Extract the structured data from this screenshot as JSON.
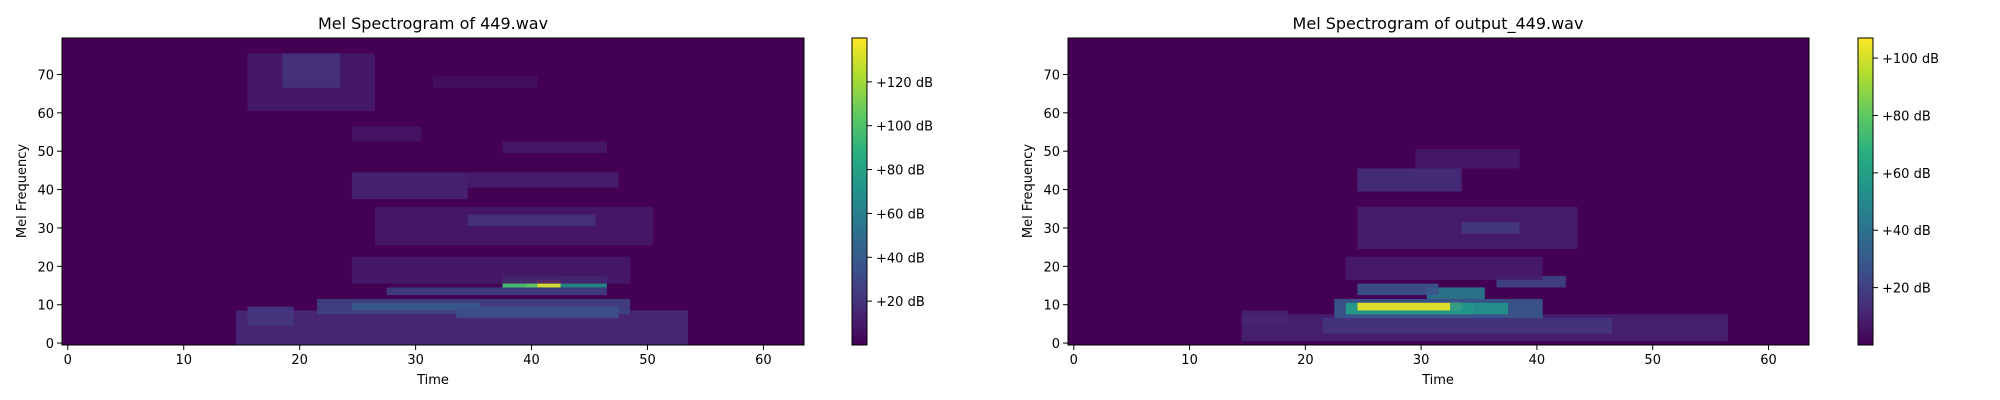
{
  "chart_data": [
    {
      "type": "heatmap",
      "title": "Mel Spectrogram of 449.wav",
      "xlabel": "Time",
      "ylabel": "Mel Frequency",
      "xlim": [
        -0.5,
        63.5
      ],
      "ylim": [
        -0.5,
        79.5
      ],
      "x_ticks": [
        0,
        10,
        20,
        30,
        40,
        50,
        60
      ],
      "y_ticks": [
        0,
        10,
        20,
        30,
        40,
        50,
        60,
        70
      ],
      "colorbar": {
        "min": 0,
        "max": 140,
        "ticks": [
          20,
          40,
          60,
          80,
          100,
          120
        ],
        "tick_labels": [
          "+20 dB",
          "+40 dB",
          "+60 dB",
          "+80 dB",
          "+100 dB",
          "+120 dB"
        ]
      },
      "background": 0,
      "regions": [
        {
          "t": [
            15,
            53
          ],
          "m": [
            0,
            8
          ],
          "v": 16
        },
        {
          "t": [
            22,
            48
          ],
          "m": [
            8,
            11
          ],
          "v": 28
        },
        {
          "t": [
            25,
            35
          ],
          "m": [
            9,
            10
          ],
          "v": 40
        },
        {
          "t": [
            34,
            47
          ],
          "m": [
            7,
            9
          ],
          "v": 34
        },
        {
          "t": [
            28,
            46
          ],
          "m": [
            13,
            14
          ],
          "v": 26
        },
        {
          "t": [
            38,
            46
          ],
          "m": [
            15,
            17
          ],
          "v": 70
        },
        {
          "t": [
            40,
            42
          ],
          "m": [
            15,
            16
          ],
          "v": 135
        },
        {
          "t": [
            38,
            40
          ],
          "m": [
            15,
            16
          ],
          "v": 100
        },
        {
          "t": [
            16,
            19
          ],
          "m": [
            5,
            9
          ],
          "v": 22
        },
        {
          "t": [
            25,
            48
          ],
          "m": [
            16,
            22
          ],
          "v": 10
        },
        {
          "t": [
            27,
            50
          ],
          "m": [
            26,
            35
          ],
          "v": 9
        },
        {
          "t": [
            35,
            45
          ],
          "m": [
            31,
            33
          ],
          "v": 20
        },
        {
          "t": [
            25,
            34
          ],
          "m": [
            38,
            44
          ],
          "v": 14
        },
        {
          "t": [
            35,
            47
          ],
          "m": [
            41,
            44
          ],
          "v": 12
        },
        {
          "t": [
            38,
            46
          ],
          "m": [
            50,
            52
          ],
          "v": 9
        },
        {
          "t": [
            25,
            30
          ],
          "m": [
            53,
            56
          ],
          "v": 8
        },
        {
          "t": [
            16,
            26
          ],
          "m": [
            61,
            75
          ],
          "v": 10
        },
        {
          "t": [
            19,
            23
          ],
          "m": [
            67,
            75
          ],
          "v": 20
        },
        {
          "t": [
            32,
            40
          ],
          "m": [
            67,
            69
          ],
          "v": 6
        }
      ]
    },
    {
      "type": "heatmap",
      "title": "Mel Spectrogram of output_449.wav",
      "xlabel": "Time",
      "ylabel": "Mel Frequency",
      "xlim": [
        -0.5,
        63.5
      ],
      "ylim": [
        -0.5,
        79.5
      ],
      "x_ticks": [
        0,
        10,
        20,
        30,
        40,
        50,
        60
      ],
      "y_ticks": [
        0,
        10,
        20,
        30,
        40,
        50,
        60,
        70
      ],
      "colorbar": {
        "min": 0,
        "max": 107,
        "ticks": [
          20,
          40,
          60,
          80,
          100
        ],
        "tick_labels": [
          "+20 dB",
          "+40 dB",
          "+60 dB",
          "+80 dB",
          "+100 dB"
        ]
      },
      "background": 0,
      "regions": [
        {
          "t": [
            15,
            56
          ],
          "m": [
            1,
            7
          ],
          "v": 10
        },
        {
          "t": [
            22,
            46
          ],
          "m": [
            3,
            6
          ],
          "v": 16
        },
        {
          "t": [
            23,
            40
          ],
          "m": [
            7,
            11
          ],
          "v": 30
        },
        {
          "t": [
            24,
            34
          ],
          "m": [
            8,
            10
          ],
          "v": 60
        },
        {
          "t": [
            25,
            33
          ],
          "m": [
            9,
            10
          ],
          "v": 105
        },
        {
          "t": [
            33,
            37
          ],
          "m": [
            8,
            10
          ],
          "v": 55
        },
        {
          "t": [
            31,
            35
          ],
          "m": [
            12,
            14
          ],
          "v": 45
        },
        {
          "t": [
            25,
            31
          ],
          "m": [
            13,
            15
          ],
          "v": 28
        },
        {
          "t": [
            37,
            42
          ],
          "m": [
            15,
            17
          ],
          "v": 22
        },
        {
          "t": [
            24,
            40
          ],
          "m": [
            17,
            22
          ],
          "v": 8
        },
        {
          "t": [
            25,
            43
          ],
          "m": [
            25,
            35
          ],
          "v": 9
        },
        {
          "t": [
            34,
            38
          ],
          "m": [
            29,
            31
          ],
          "v": 18
        },
        {
          "t": [
            25,
            33
          ],
          "m": [
            40,
            45
          ],
          "v": 14
        },
        {
          "t": [
            30,
            38
          ],
          "m": [
            46,
            50
          ],
          "v": 7
        },
        {
          "t": [
            15,
            18
          ],
          "m": [
            5,
            8
          ],
          "v": 10
        }
      ]
    }
  ]
}
